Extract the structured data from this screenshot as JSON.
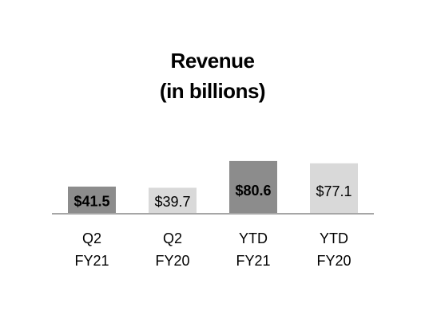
{
  "chart_data": {
    "type": "bar",
    "title": "Revenue",
    "subtitle": "(in billions)",
    "categories": [
      [
        "Q2",
        "FY21"
      ],
      [
        "Q2",
        "FY20"
      ],
      [
        "YTD",
        "FY21"
      ],
      [
        "YTD",
        "FY20"
      ]
    ],
    "values": [
      41.5,
      39.7,
      80.6,
      77.1
    ],
    "value_labels": [
      "$41.5",
      "$39.7",
      "$80.6",
      "$77.1"
    ],
    "colors": [
      "#8c8c8c",
      "#d9d9d9",
      "#8c8c8c",
      "#d9d9d9"
    ]
  }
}
